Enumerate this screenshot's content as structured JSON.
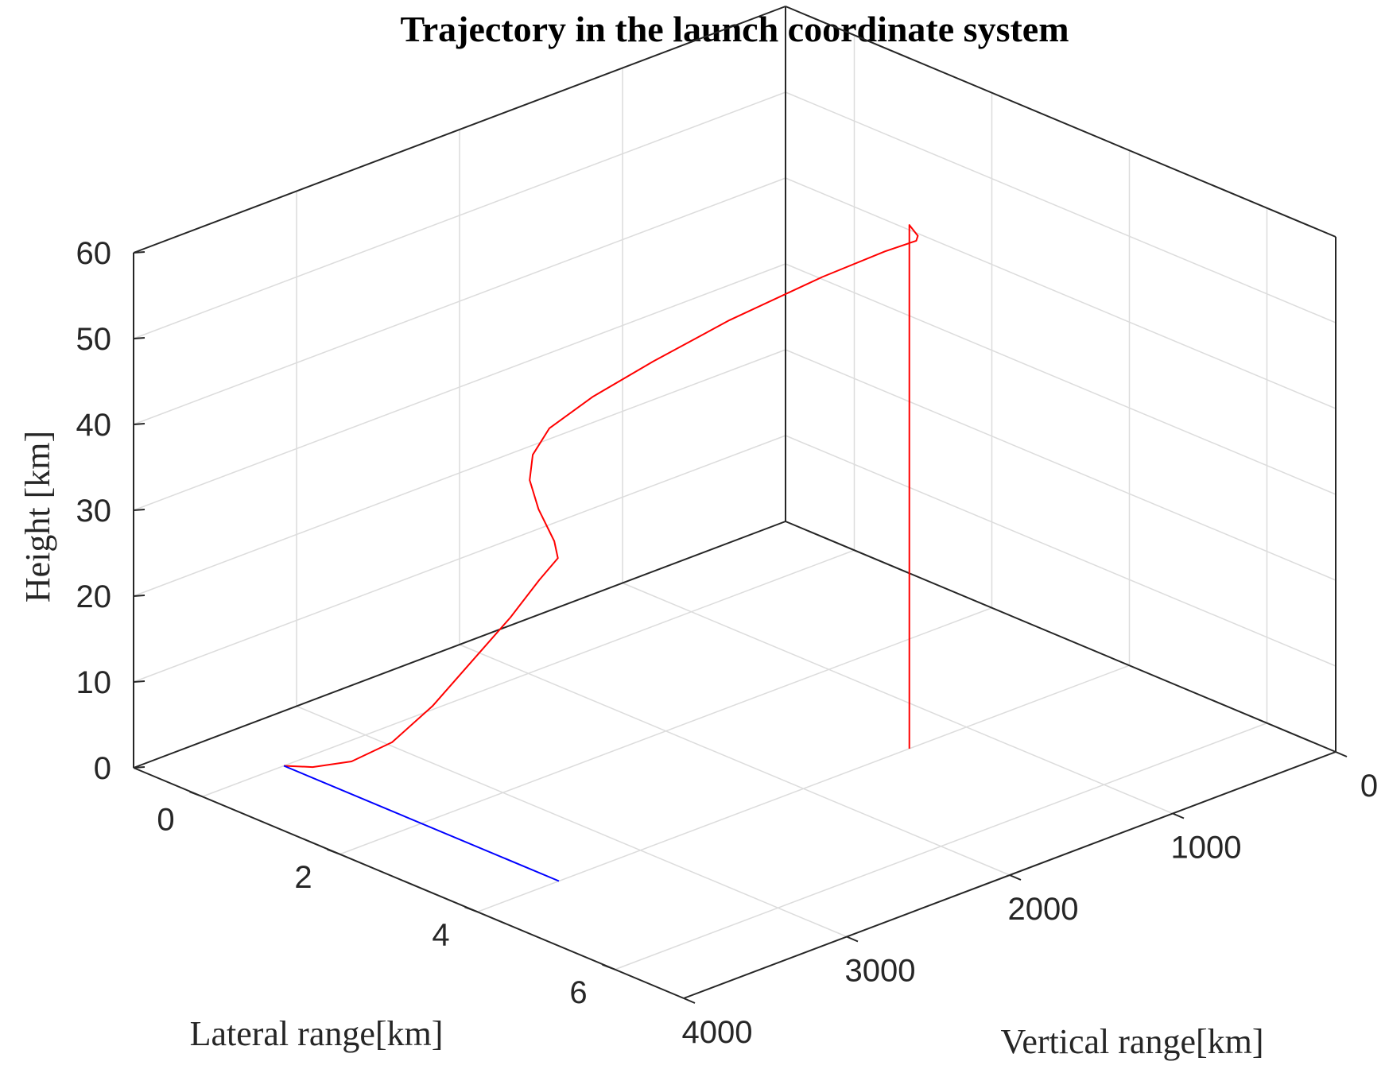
{
  "chart_data": {
    "type": "line",
    "projection": "3d",
    "title": "Trajectory in the launch coordinate system",
    "xlabel": "Lateral range[km]",
    "ylabel": "Vertical range[km]",
    "zlabel": "Height [km]",
    "xlim": [
      -1,
      7
    ],
    "ylim": [
      0,
      4000
    ],
    "zlim": [
      0,
      60
    ],
    "xticks": [
      0,
      2,
      4,
      6
    ],
    "yticks": [
      0,
      1000,
      2000,
      3000,
      4000
    ],
    "zticks": [
      0,
      10,
      20,
      30,
      40,
      50,
      60
    ],
    "grid": true,
    "series": [
      {
        "color": "#ff0000",
        "points": [
          [
            0,
            3500,
            0
          ],
          [
            0.3,
            3450,
            0.5
          ],
          [
            0.7,
            3380,
            2
          ],
          [
            1.1,
            3300,
            5
          ],
          [
            1.5,
            3220,
            10
          ],
          [
            1.9,
            3150,
            16
          ],
          [
            2.3,
            3080,
            22
          ],
          [
            2.6,
            3030,
            27
          ],
          [
            2.8,
            3000,
            30
          ],
          [
            2.7,
            2980,
            31.5
          ],
          [
            2.4,
            2950,
            34
          ],
          [
            2.2,
            2920,
            36.5
          ],
          [
            2.15,
            2880,
            39
          ],
          [
            2.25,
            2820,
            42
          ],
          [
            2.6,
            2700,
            46
          ],
          [
            3.0,
            2500,
            50
          ],
          [
            3.4,
            2200,
            54
          ],
          [
            3.8,
            1800,
            57.5
          ],
          [
            4.0,
            1500,
            59
          ],
          [
            4.1,
            1350,
            59.5
          ],
          [
            4.1,
            1340,
            60
          ],
          [
            4.0,
            1350,
            61
          ],
          [
            4.0,
            1350,
            0
          ]
        ]
      },
      {
        "color": "#0000ff",
        "points": [
          [
            0,
            3500,
            0
          ],
          [
            4,
            3500,
            0
          ]
        ]
      }
    ]
  }
}
